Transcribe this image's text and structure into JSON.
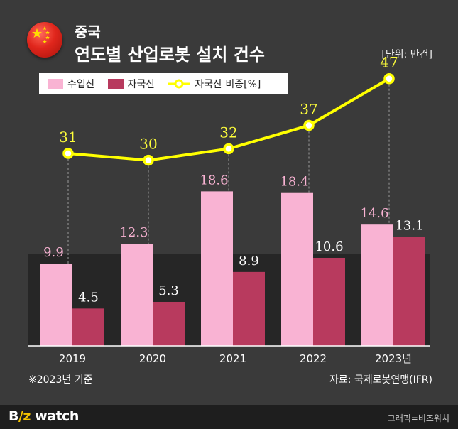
{
  "header": {
    "subtitle": "중국",
    "title": "연도별 산업로봇 설치 건수",
    "unit": "[단위: 만건]"
  },
  "legend": {
    "import_label": "수입산",
    "domestic_label": "자국산",
    "share_label": "자국산 비중[%]"
  },
  "colors": {
    "import": "#f9b3d3",
    "domestic": "#b83a5e",
    "share_line": "#ffff00",
    "share_label": "#ffff3a",
    "import_label": "#f9b3d3"
  },
  "chart_data": {
    "type": "bar",
    "categories": [
      "2019",
      "2020",
      "2021",
      "2022",
      "2023년"
    ],
    "series": [
      {
        "name": "수입산",
        "values": [
          9.9,
          12.3,
          18.6,
          18.4,
          14.6
        ]
      },
      {
        "name": "자국산",
        "values": [
          4.5,
          5.3,
          8.9,
          10.6,
          13.1
        ]
      }
    ],
    "line_series": {
      "name": "자국산 비중[%]",
      "values": [
        31,
        30,
        32,
        37,
        47
      ]
    },
    "ylabel": "",
    "xlabel": "",
    "grid": false
  },
  "footer": {
    "note": "※2023년 기준",
    "source": "자료: 국제로봇연맹(IFR)",
    "logo_b": "B",
    "logo_iz": "/z",
    "logo_watch": " watch",
    "credit": "그래픽=비즈워치"
  }
}
